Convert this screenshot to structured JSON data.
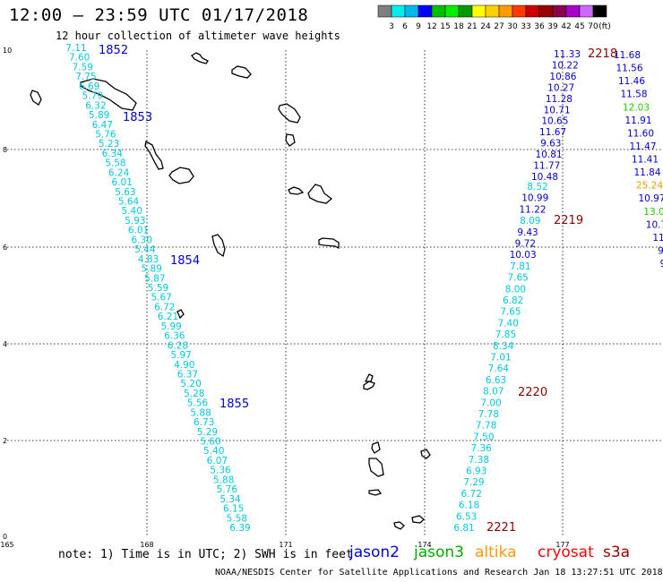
{
  "header": {
    "title": "12:00 – 23:59 UTC 01/17/2018",
    "subtitle": "12 hour collection of altimeter wave heights"
  },
  "colorbar": {
    "colors": [
      "#7f7f7f",
      "#00eeee",
      "#00b7ee",
      "#0000ff",
      "#00bf00",
      "#00ee00",
      "#009900",
      "#ffff00",
      "#ffd000",
      "#ff9900",
      "#ff3a00",
      "#cc0000",
      "#990000",
      "#8b004d",
      "#aa00cc",
      "#cc66ff",
      "#000000"
    ],
    "labels": [
      "3",
      "6",
      "9",
      "12",
      "15",
      "18",
      "21",
      "24",
      "27",
      "30",
      "33",
      "36",
      "39",
      "42",
      "45",
      "70"
    ],
    "unit": "(ft)"
  },
  "axes": {
    "x_ticks": [
      "165",
      "168",
      "171",
      "174",
      "177"
    ],
    "y_ticks": [
      "10",
      "8",
      "6",
      "4",
      "2",
      "0"
    ]
  },
  "passes": [
    {
      "label": "1852",
      "color": "#0000cc"
    },
    {
      "label": "1853",
      "color": "#0000cc"
    },
    {
      "label": "1854",
      "color": "#0000cc"
    },
    {
      "label": "1855",
      "color": "#0000cc"
    },
    {
      "label": "2218",
      "color": "#880000"
    },
    {
      "label": "2219",
      "color": "#880000"
    },
    {
      "label": "2220",
      "color": "#880000"
    },
    {
      "label": "2221",
      "color": "#880000"
    }
  ],
  "tracks": {
    "track1": {
      "color": "#00c8e0",
      "values": [
        "7.11",
        "7.60",
        "7.59",
        "7.75",
        "6.69",
        "5.79",
        "6.32",
        "5.89",
        "6.47",
        "5.76",
        "5.23",
        "6.34",
        "5.58",
        "6.24",
        "6.01",
        "5.63",
        "5.64",
        "5.40",
        "5.93",
        "6.01",
        "6.30",
        "5.44",
        "4.83",
        "5.89",
        "5.87",
        "5.59",
        "5.67",
        "6.72",
        "6.21",
        "5.99",
        "6.36",
        "6.28",
        "5.97",
        "4.90",
        "6.37",
        "5.20",
        "5.28",
        "5.56",
        "5.88",
        "6.73",
        "5.29",
        "5.60",
        "5.40",
        "6.07",
        "5.36",
        "5.88",
        "5.76",
        "5.34",
        "6.15",
        "5.58",
        "6.39"
      ]
    },
    "track2": {
      "color": "#0000cc",
      "values": [
        "11.33",
        "10.22",
        "10.86",
        "10.27",
        "11.28",
        "10.71",
        "10.65",
        "11.67",
        "9.63",
        "10.81",
        "11.77",
        "10.48"
      ]
    },
    "track3": {
      "values": [
        {
          "v": "8.52",
          "c": "#00c8e0"
        },
        {
          "v": "10.99",
          "c": "#0000cc"
        },
        {
          "v": "11.22",
          "c": "#0000cc"
        },
        {
          "v": "8.09",
          "c": "#00c8e0"
        },
        {
          "v": "9.43",
          "c": "#0000cc"
        },
        {
          "v": "9.72",
          "c": "#0000cc"
        },
        {
          "v": "10.03",
          "c": "#0000cc"
        },
        {
          "v": "7.81",
          "c": "#00c8e0"
        },
        {
          "v": "7.65",
          "c": "#00c8e0"
        },
        {
          "v": "8.00",
          "c": "#00c8e0"
        },
        {
          "v": "6.82",
          "c": "#00c8e0"
        },
        {
          "v": "7.65",
          "c": "#00c8e0"
        },
        {
          "v": "7.40",
          "c": "#00c8e0"
        },
        {
          "v": "7.85",
          "c": "#00c8e0"
        },
        {
          "v": "8.34",
          "c": "#00c8e0"
        },
        {
          "v": "7.01",
          "c": "#00c8e0"
        },
        {
          "v": "7.64",
          "c": "#00c8e0"
        },
        {
          "v": "6.63",
          "c": "#00c8e0"
        },
        {
          "v": "8.07",
          "c": "#00c8e0"
        },
        {
          "v": "7.00",
          "c": "#00c8e0"
        },
        {
          "v": "7.78",
          "c": "#00c8e0"
        },
        {
          "v": "7.78",
          "c": "#00c8e0"
        },
        {
          "v": "7.50",
          "c": "#00c8e0"
        },
        {
          "v": "7.36",
          "c": "#00c8e0"
        },
        {
          "v": "7.38",
          "c": "#00c8e0"
        },
        {
          "v": "6.93",
          "c": "#00c8e0"
        },
        {
          "v": "7.29",
          "c": "#00c8e0"
        },
        {
          "v": "6.72",
          "c": "#00c8e0"
        },
        {
          "v": "6.18",
          "c": "#00c8e0"
        },
        {
          "v": "6.53",
          "c": "#00c8e0"
        },
        {
          "v": "6.81",
          "c": "#00c8e0"
        }
      ]
    },
    "track4": {
      "values": [
        {
          "v": "11.68",
          "c": "#0000cc"
        },
        {
          "v": "11.56",
          "c": "#0000cc"
        },
        {
          "v": "11.46",
          "c": "#0000cc"
        },
        {
          "v": "11.58",
          "c": "#0000cc"
        },
        {
          "v": "12.03",
          "c": "#22cc00"
        },
        {
          "v": "11.91",
          "c": "#0000cc"
        },
        {
          "v": "11.60",
          "c": "#0000cc"
        },
        {
          "v": "11.47",
          "c": "#0000cc"
        },
        {
          "v": "11.41",
          "c": "#0000cc"
        },
        {
          "v": "11.84",
          "c": "#0000cc"
        },
        {
          "v": "25.24",
          "c": "#e0a000"
        },
        {
          "v": "10.97",
          "c": "#0000cc"
        },
        {
          "v": "13.0",
          "c": "#22cc00"
        },
        {
          "v": "10.7",
          "c": "#0000cc"
        },
        {
          "v": "11",
          "c": "#0000cc"
        },
        {
          "v": "9",
          "c": "#0000cc"
        },
        {
          "v": "9",
          "c": "#0000cc"
        }
      ]
    }
  },
  "footer": {
    "note": "note: 1) Time is in UTC; 2) SWH is in feet",
    "satellites": [
      {
        "name": "jason2",
        "color": "#0000ee"
      },
      {
        "name": "jason3",
        "color": "#00aa00"
      },
      {
        "name": "altika",
        "color": "#ff9900"
      },
      {
        "name": "cryosat",
        "color": "#ff0000"
      },
      {
        "name": "s3a",
        "color": "#990000"
      }
    ],
    "credit": "NOAA/NESDIS Center for Satellite Applications and Research    Jan 18 13:27:51 UTC 2018"
  }
}
